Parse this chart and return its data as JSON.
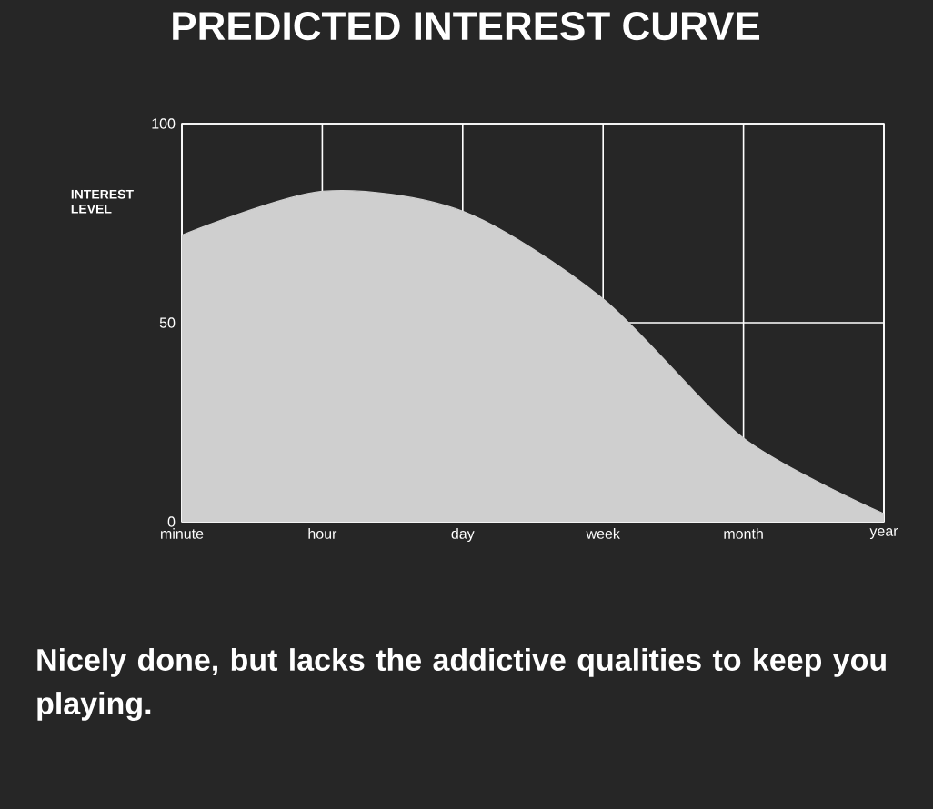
{
  "chart_data": {
    "type": "area",
    "title": "PREDICTED INTEREST CURVE",
    "ylabel": "INTEREST LEVEL",
    "categories": [
      "minute",
      "hour",
      "day",
      "week",
      "month",
      "year"
    ],
    "series": [
      {
        "color": "#cfcfcf",
        "values": [
          72,
          83,
          78,
          56,
          21,
          2
        ]
      }
    ],
    "ylim": [
      0,
      100
    ],
    "yticks": [
      0,
      50,
      100
    ],
    "grid": true,
    "annotations": [
      "Nicely done, but lacks the addictive qualities to keep you playing."
    ]
  }
}
